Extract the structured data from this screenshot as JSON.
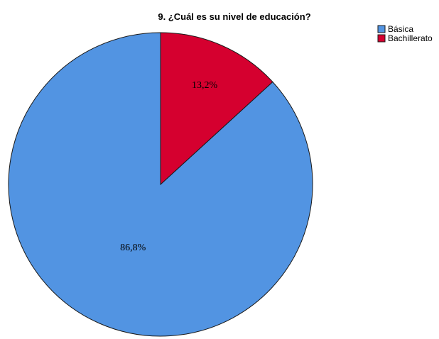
{
  "chart_data": {
    "type": "pie",
    "title": "9. ¿Cuál es su nivel de educación?",
    "slices": [
      {
        "label": "Básica",
        "value": 86.8,
        "value_label": "86,8%",
        "color": "#5294e2"
      },
      {
        "label": "Bachillerato",
        "value": 13.2,
        "value_label": "13,2%",
        "color": "#d5002f"
      }
    ],
    "start_angle": "12 o'clock",
    "direction": "counterclockwise",
    "legend_position": "top-right"
  }
}
